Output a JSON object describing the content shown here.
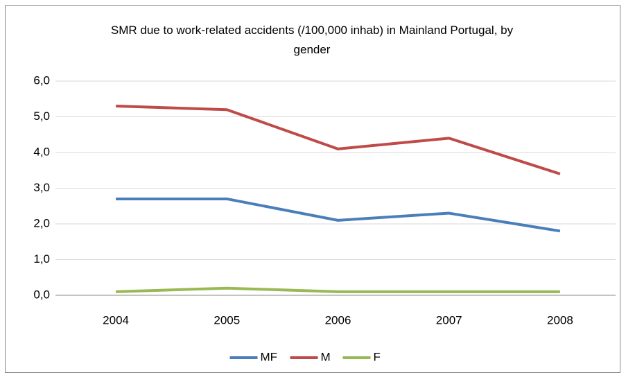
{
  "chart_data": {
    "type": "line",
    "title": "SMR due to work-related accidents (/100,000 inhab) in Mainland Portugal, by gender",
    "categories": [
      "2004",
      "2005",
      "2006",
      "2007",
      "2008"
    ],
    "series": [
      {
        "name": "MF",
        "color": "#4a7ebb",
        "values": [
          2.7,
          2.7,
          2.1,
          2.3,
          1.8
        ]
      },
      {
        "name": "M",
        "color": "#be4b48",
        "values": [
          5.3,
          5.2,
          4.1,
          4.4,
          3.4
        ]
      },
      {
        "name": "F",
        "color": "#98b954",
        "values": [
          0.1,
          0.2,
          0.1,
          0.1,
          0.1
        ]
      }
    ],
    "ylim": [
      0,
      6
    ],
    "yticks": [
      {
        "value": 0,
        "label": "0,0"
      },
      {
        "value": 1,
        "label": "1,0"
      },
      {
        "value": 2,
        "label": "2,0"
      },
      {
        "value": 3,
        "label": "3,0"
      },
      {
        "value": 4,
        "label": "4,0"
      },
      {
        "value": 5,
        "label": "5,0"
      },
      {
        "value": 6,
        "label": "6,0"
      }
    ],
    "grid": true,
    "legend": "bottom"
  }
}
